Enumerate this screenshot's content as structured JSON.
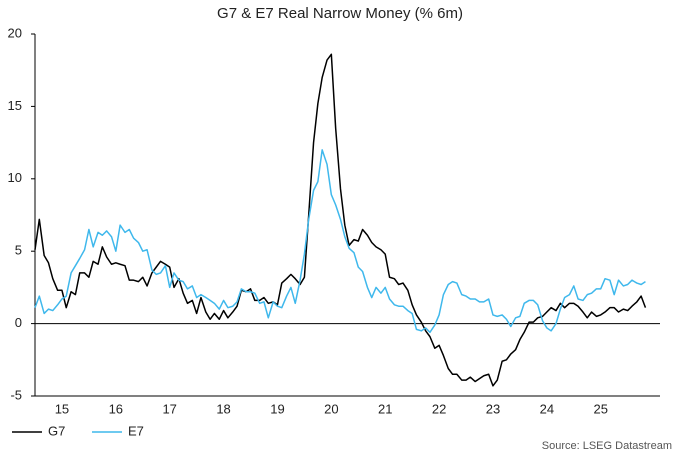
{
  "chart_data": {
    "type": "line",
    "title": "G7 & E7 Real Narrow Money (% 6m)",
    "source": "Source: LSEG Datastream",
    "x": [
      15,
      15.08,
      15.17,
      15.25,
      15.33,
      15.42,
      15.5,
      15.58,
      15.67,
      15.75,
      15.83,
      15.92,
      16,
      16.08,
      16.17,
      16.25,
      16.33,
      16.42,
      16.5,
      16.58,
      16.67,
      16.75,
      16.83,
      16.92,
      17,
      17.08,
      17.17,
      17.25,
      17.33,
      17.42,
      17.5,
      17.58,
      17.67,
      17.75,
      17.83,
      17.92,
      18,
      18.08,
      18.17,
      18.25,
      18.33,
      18.42,
      18.5,
      18.58,
      18.67,
      18.75,
      18.83,
      18.92,
      19,
      19.08,
      19.17,
      19.25,
      19.33,
      19.42,
      19.5,
      19.58,
      19.67,
      19.75,
      19.83,
      19.92,
      20,
      20.08,
      20.17,
      20.25,
      20.33,
      20.42,
      20.5,
      20.58,
      20.67,
      20.75,
      20.83,
      20.92,
      21,
      21.08,
      21.17,
      21.25,
      21.33,
      21.42,
      21.5,
      21.58,
      21.67,
      21.75,
      21.83,
      21.92,
      22,
      22.08,
      22.17,
      22.25,
      22.33,
      22.42,
      22.5,
      22.58,
      22.67,
      22.75,
      22.83,
      22.92,
      23,
      23.08,
      23.17,
      23.25,
      23.33,
      23.42,
      23.5,
      23.58,
      23.67,
      23.75,
      23.83,
      23.92,
      24,
      24.08,
      24.17,
      24.25,
      24.33,
      24.42,
      24.5,
      24.58,
      24.67,
      24.75,
      24.83,
      24.92,
      25,
      25.08,
      25.17,
      25.25,
      25.33,
      25.42,
      25.5,
      25.58,
      25.67,
      25.75,
      25.83,
      25.92,
      26,
      26.08,
      26.17,
      26.25,
      26.33
    ],
    "series": [
      {
        "name": "G7",
        "color": "#000000",
        "values": [
          5.1,
          7.2,
          4.7,
          4.2,
          3.1,
          2.3,
          2.3,
          1.1,
          2.2,
          2.0,
          3.5,
          3.5,
          3.2,
          4.3,
          4.1,
          5.3,
          4.6,
          4.1,
          4.2,
          4.1,
          4.0,
          3.0,
          3.0,
          2.9,
          3.2,
          2.6,
          3.5,
          3.9,
          4.3,
          4.1,
          3.9,
          2.5,
          3.1,
          2.1,
          1.4,
          1.6,
          0.7,
          1.8,
          0.8,
          0.3,
          0.7,
          0.3,
          0.9,
          0.4,
          0.8,
          1.2,
          2.3,
          2.2,
          2.4,
          1.6,
          1.6,
          1.8,
          1.4,
          1.5,
          1.3,
          2.8,
          3.1,
          3.4,
          3.1,
          2.7,
          3.2,
          7.5,
          12.5,
          15.2,
          17.0,
          18.2,
          18.6,
          13.5,
          9.3,
          6.8,
          5.4,
          5.8,
          5.7,
          6.5,
          6.1,
          5.6,
          5.3,
          5.1,
          4.8,
          3.2,
          3.1,
          2.7,
          2.8,
          2.3,
          1.3,
          0.6,
          0.1,
          -0.5,
          -0.9,
          -1.7,
          -1.5,
          -2.2,
          -3.1,
          -3.5,
          -3.5,
          -3.9,
          -3.9,
          -3.7,
          -4.0,
          -3.8,
          -3.6,
          -3.5,
          -4.3,
          -3.9,
          -2.6,
          -2.5,
          -2.1,
          -1.8,
          -1.1,
          -0.6,
          0.1,
          0.1,
          0.4,
          0.5,
          0.8,
          1.1,
          0.9,
          1.4,
          1.1,
          1.4,
          1.4,
          1.2,
          0.8,
          0.4,
          0.8,
          0.5,
          0.6,
          0.8,
          1.1,
          1.1,
          0.8,
          1.0,
          0.9,
          1.2,
          1.5,
          1.9,
          1.1
        ]
      },
      {
        "name": "E7",
        "color": "#3fb8ec",
        "values": [
          1.1,
          1.9,
          0.7,
          1.0,
          0.9,
          1.3,
          1.7,
          1.9,
          3.5,
          4.0,
          4.5,
          5.1,
          6.5,
          5.3,
          6.3,
          6.1,
          6.4,
          6.0,
          5.0,
          6.8,
          6.3,
          6.5,
          5.9,
          5.6,
          5.0,
          5.1,
          3.7,
          3.4,
          3.5,
          4.0,
          2.5,
          3.5,
          3.0,
          2.9,
          2.4,
          2.6,
          1.8,
          2.0,
          1.8,
          1.6,
          1.4,
          1.0,
          1.6,
          1.1,
          1.2,
          1.5,
          2.4,
          2.2,
          2.2,
          2.1,
          1.4,
          1.5,
          0.4,
          1.5,
          1.2,
          1.1,
          1.9,
          2.5,
          1.4,
          3.0,
          4.8,
          7.2,
          9.2,
          9.8,
          12.0,
          11.0,
          8.9,
          8.2,
          7.2,
          6.0,
          5.2,
          4.9,
          3.9,
          3.6,
          2.5,
          1.8,
          2.5,
          2.1,
          2.5,
          1.7,
          1.3,
          1.2,
          1.2,
          0.9,
          0.7,
          -0.4,
          -0.5,
          -0.3,
          -0.6,
          -0.1,
          0.6,
          2.0,
          2.7,
          2.9,
          2.8,
          2.0,
          1.9,
          1.7,
          1.7,
          1.5,
          1.5,
          1.7,
          0.6,
          0.5,
          0.6,
          0.3,
          -0.2,
          0.4,
          0.5,
          1.4,
          1.6,
          1.6,
          1.3,
          0.2,
          -0.3,
          -0.5,
          0.0,
          1.0,
          1.8,
          2.0,
          2.6,
          1.7,
          1.6,
          2.0,
          2.1,
          2.4,
          2.4,
          3.1,
          3.0,
          2.0,
          3.0,
          2.6,
          2.7,
          3.0,
          2.8,
          2.7,
          2.9
        ]
      }
    ],
    "xlim": [
      15,
      26.6
    ],
    "xticks": [
      {
        "value": 15.5,
        "label": "15"
      },
      {
        "value": 16.5,
        "label": "16"
      },
      {
        "value": 17.5,
        "label": "17"
      },
      {
        "value": 18.5,
        "label": "18"
      },
      {
        "value": 19.5,
        "label": "19"
      },
      {
        "value": 20.5,
        "label": "20"
      },
      {
        "value": 21.5,
        "label": "21"
      },
      {
        "value": 22.5,
        "label": "22"
      },
      {
        "value": 23.5,
        "label": "23"
      },
      {
        "value": 24.5,
        "label": "24"
      },
      {
        "value": 25.5,
        "label": "25"
      }
    ],
    "ylim": [
      -5,
      20
    ],
    "yticks": [
      -5,
      0,
      5,
      10,
      15,
      20
    ],
    "legend": "bottom-left"
  }
}
